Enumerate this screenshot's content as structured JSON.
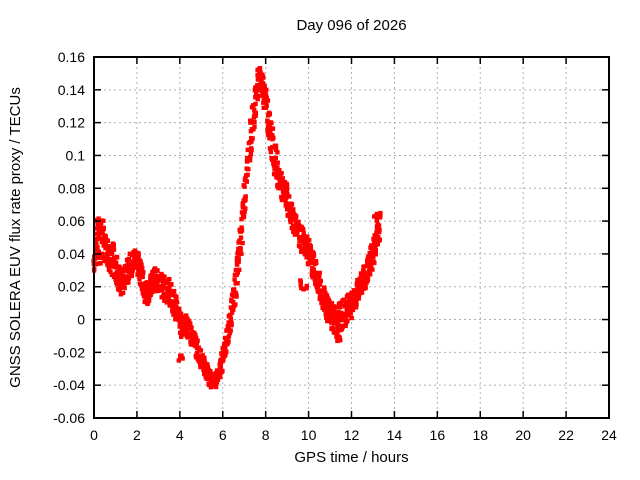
{
  "chart_data": {
    "type": "scatter",
    "title": "Day 096 of 2026",
    "xlabel": "GPS time / hours",
    "ylabel": "GNSS SOLERA EUV flux rate proxy / TECUs",
    "xlim": [
      0,
      24
    ],
    "ylim": [
      -0.06,
      0.16
    ],
    "xticks": {
      "values": [
        0,
        2,
        4,
        6,
        8,
        10,
        12,
        14,
        16,
        18,
        20,
        22,
        24
      ],
      "labels": [
        "0",
        "2",
        "4",
        "6",
        "8",
        "10",
        "12",
        "14",
        "16",
        "18",
        "20",
        "22",
        "24"
      ]
    },
    "yticks": {
      "values": [
        -0.06,
        -0.04,
        -0.02,
        0,
        0.02,
        0.04,
        0.06,
        0.08,
        0.1,
        0.12,
        0.14,
        0.16
      ],
      "labels": [
        "-0.06",
        "-0.04",
        "-0.02",
        "0",
        "0.02",
        "0.04",
        "0.06",
        "0.08",
        "0.1",
        "0.12",
        "0.14",
        "0.16"
      ]
    },
    "grid": true,
    "legend": "none",
    "marker": "filled-square",
    "colors": {
      "points": "#ff0000",
      "grid": "#b0b0b0",
      "border": "#000000",
      "background": "#ffffff",
      "text": "#000000"
    },
    "series": [
      {
        "name": "EUV flux rate proxy",
        "x_start": 0.0,
        "x_end": 13.3,
        "band": [
          [
            0.0,
            0.038,
            0.013
          ],
          [
            0.15,
            0.047,
            0.015
          ],
          [
            0.35,
            0.049,
            0.014
          ],
          [
            0.55,
            0.043,
            0.012
          ],
          [
            0.75,
            0.039,
            0.011
          ],
          [
            0.95,
            0.035,
            0.01
          ],
          [
            1.15,
            0.026,
            0.009
          ],
          [
            1.3,
            0.021,
            0.008
          ],
          [
            1.5,
            0.028,
            0.008
          ],
          [
            1.7,
            0.033,
            0.008
          ],
          [
            1.9,
            0.037,
            0.008
          ],
          [
            2.1,
            0.032,
            0.008
          ],
          [
            2.3,
            0.02,
            0.008
          ],
          [
            2.5,
            0.015,
            0.008
          ],
          [
            2.7,
            0.022,
            0.007
          ],
          [
            2.9,
            0.025,
            0.007
          ],
          [
            3.1,
            0.021,
            0.007
          ],
          [
            3.3,
            0.019,
            0.008
          ],
          [
            3.5,
            0.017,
            0.008
          ],
          [
            3.7,
            0.011,
            0.008
          ],
          [
            3.9,
            0.003,
            0.008
          ],
          [
            4.1,
            -0.005,
            0.007
          ],
          [
            4.3,
            -0.003,
            0.006
          ],
          [
            4.5,
            -0.009,
            0.006
          ],
          [
            4.7,
            -0.015,
            0.006
          ],
          [
            4.9,
            -0.021,
            0.006
          ],
          [
            5.1,
            -0.027,
            0.006
          ],
          [
            5.3,
            -0.034,
            0.006
          ],
          [
            5.5,
            -0.038,
            0.005
          ],
          [
            5.7,
            -0.036,
            0.005
          ],
          [
            5.9,
            -0.03,
            0.006
          ],
          [
            6.1,
            -0.019,
            0.007
          ],
          [
            6.3,
            -0.005,
            0.008
          ],
          [
            6.5,
            0.012,
            0.009
          ],
          [
            6.7,
            0.032,
            0.011
          ],
          [
            6.9,
            0.056,
            0.012
          ],
          [
            7.1,
            0.084,
            0.013
          ],
          [
            7.3,
            0.11,
            0.013
          ],
          [
            7.5,
            0.131,
            0.012
          ],
          [
            7.7,
            0.147,
            0.01
          ],
          [
            7.85,
            0.144,
            0.011
          ],
          [
            8.0,
            0.136,
            0.012
          ],
          [
            8.2,
            0.118,
            0.013
          ],
          [
            8.4,
            0.1,
            0.011
          ],
          [
            8.6,
            0.088,
            0.01
          ],
          [
            8.8,
            0.079,
            0.009
          ],
          [
            9.0,
            0.073,
            0.009
          ],
          [
            9.2,
            0.065,
            0.009
          ],
          [
            9.4,
            0.057,
            0.008
          ],
          [
            9.6,
            0.051,
            0.008
          ],
          [
            9.8,
            0.046,
            0.008
          ],
          [
            10.0,
            0.041,
            0.008
          ],
          [
            10.2,
            0.034,
            0.008
          ],
          [
            10.4,
            0.026,
            0.008
          ],
          [
            10.6,
            0.017,
            0.008
          ],
          [
            10.8,
            0.009,
            0.008
          ],
          [
            11.0,
            0.003,
            0.008
          ],
          [
            11.2,
            0.0,
            0.009
          ],
          [
            11.4,
            0.001,
            0.009
          ],
          [
            11.6,
            0.004,
            0.009
          ],
          [
            11.8,
            0.006,
            0.009
          ],
          [
            12.0,
            0.009,
            0.009
          ],
          [
            12.2,
            0.014,
            0.008
          ],
          [
            12.4,
            0.02,
            0.008
          ],
          [
            12.6,
            0.026,
            0.008
          ],
          [
            12.8,
            0.032,
            0.008
          ],
          [
            13.0,
            0.04,
            0.009
          ],
          [
            13.15,
            0.047,
            0.009
          ],
          [
            13.3,
            0.054,
            0.009
          ]
        ],
        "clusters": [
          {
            "h": [
              0.1,
              0.45
            ],
            "v": 0.058,
            "spread": 0.004,
            "n": 10
          },
          {
            "h": [
              4.15,
              4.45
            ],
            "v": 0.0,
            "spread": 0.003,
            "n": 6
          },
          {
            "h": [
              3.85,
              4.15
            ],
            "v": -0.022,
            "spread": 0.003,
            "n": 6
          },
          {
            "h": [
              9.55,
              10.0
            ],
            "v": 0.021,
            "spread": 0.003,
            "n": 8
          },
          {
            "h": [
              11.2,
              11.5
            ],
            "v": -0.011,
            "spread": 0.002,
            "n": 6
          },
          {
            "h": [
              13.05,
              13.35
            ],
            "v": 0.063,
            "spread": 0.003,
            "n": 8
          }
        ],
        "extremes": {
          "min_value": -0.043,
          "min_hour": 5.5,
          "max_value": 0.157,
          "max_hour": 7.7
        }
      }
    ]
  }
}
